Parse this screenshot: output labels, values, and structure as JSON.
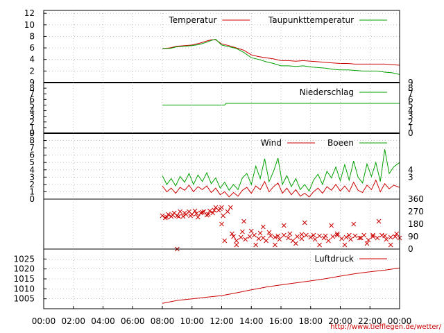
{
  "credit": "http://www.tiefflegen.de/wetter/",
  "colors": {
    "red": "#cc0000",
    "green": "#00a000",
    "grid": "#999999",
    "frame": "#000000"
  },
  "x_axis": {
    "ticks": [
      "00:00",
      "02:00",
      "04:00",
      "06:00",
      "08:00",
      "10:00",
      "12:00",
      "14:00",
      "16:00",
      "18:00",
      "20:00",
      "22:00",
      "00:00"
    ]
  },
  "chart_data": [
    {
      "type": "line",
      "panel": "temperature",
      "legend_placement": "top-right",
      "grid": true,
      "ylim": [
        0,
        12.5
      ],
      "y_ticks": [
        "12",
        "10",
        "8",
        "6",
        "4",
        "2"
      ],
      "x_unit": "hours",
      "series": [
        {
          "name": "Temperatur",
          "color": "red",
          "x": [
            8.0,
            8.5,
            9.0,
            9.5,
            10.0,
            10.5,
            11.0,
            11.3,
            11.6,
            12.0,
            12.5,
            13.0,
            13.5,
            14.0,
            14.5,
            15.0,
            15.5,
            16.0,
            16.5,
            17.0,
            17.5,
            18.0,
            18.5,
            19.0,
            19.5,
            20.0,
            20.5,
            21.0,
            21.5,
            22.0,
            22.5,
            23.0,
            23.5,
            24.0
          ],
          "values": [
            5.9,
            6.0,
            6.3,
            6.4,
            6.5,
            6.8,
            7.2,
            7.4,
            7.4,
            6.7,
            6.4,
            6.0,
            5.6,
            4.8,
            4.5,
            4.3,
            4.1,
            3.8,
            3.8,
            3.7,
            3.8,
            3.7,
            3.6,
            3.5,
            3.4,
            3.3,
            3.3,
            3.2,
            3.2,
            3.2,
            3.2,
            3.2,
            3.1,
            3.0
          ]
        },
        {
          "name": "Taupunkttemperatur",
          "color": "green",
          "x": [
            8.0,
            8.5,
            9.0,
            9.5,
            10.0,
            10.5,
            11.0,
            11.3,
            11.6,
            12.0,
            12.5,
            13.0,
            13.5,
            14.0,
            14.5,
            15.0,
            15.5,
            16.0,
            16.5,
            17.0,
            17.5,
            18.0,
            18.5,
            19.0,
            19.5,
            20.0,
            20.5,
            21.0,
            21.5,
            22.0,
            22.5,
            23.0,
            23.5,
            24.0
          ],
          "values": [
            5.9,
            5.9,
            6.2,
            6.3,
            6.4,
            6.6,
            7.0,
            7.3,
            7.5,
            6.5,
            6.2,
            5.9,
            5.2,
            4.3,
            4.0,
            3.6,
            3.3,
            2.9,
            2.9,
            2.8,
            2.9,
            2.7,
            2.6,
            2.5,
            2.3,
            2.2,
            2.2,
            2.1,
            2.0,
            2.0,
            2.0,
            1.8,
            1.7,
            1.4
          ]
        }
      ]
    },
    {
      "type": "line",
      "panel": "precipitation",
      "legend_placement": "top-right",
      "ylim": [
        0,
        9
      ],
      "y_ticks": [
        "9",
        "8",
        "7",
        "6",
        "5",
        "4",
        "3",
        "2",
        "1",
        "0"
      ],
      "series": [
        {
          "name": "Niederschlag",
          "color": "green",
          "x": [
            8.0,
            12.2,
            12.3,
            24.0
          ],
          "values": [
            5.0,
            5.0,
            5.3,
            5.3
          ]
        }
      ]
    },
    {
      "type": "line",
      "panel": "wind",
      "legend_placement": "top-right",
      "grid": true,
      "ylim": [
        0,
        9
      ],
      "y_ticks": [
        "9",
        "8",
        "7",
        "6",
        "5",
        "4",
        "3",
        "2",
        "1",
        "0"
      ],
      "right_ticks": [
        "4",
        "3"
      ],
      "series": [
        {
          "name": "Wind",
          "color": "red",
          "x": [
            8.0,
            8.3,
            8.6,
            8.9,
            9.2,
            9.5,
            9.8,
            10.1,
            10.4,
            10.7,
            11.0,
            11.3,
            11.6,
            11.9,
            12.2,
            12.5,
            12.8,
            13.1,
            13.4,
            13.7,
            14.0,
            14.3,
            14.6,
            14.9,
            15.2,
            15.5,
            15.8,
            16.1,
            16.4,
            16.7,
            17.0,
            17.3,
            17.6,
            17.9,
            18.2,
            18.5,
            18.8,
            19.1,
            19.4,
            19.7,
            20.0,
            20.3,
            20.6,
            20.9,
            21.2,
            21.5,
            21.8,
            22.1,
            22.4,
            22.7,
            23.0,
            23.3,
            23.6,
            24.0
          ],
          "values": [
            1.8,
            1.0,
            1.5,
            0.8,
            1.6,
            1.2,
            1.9,
            1.0,
            1.7,
            1.3,
            1.8,
            0.9,
            1.5,
            0.6,
            1.0,
            0.3,
            0.9,
            0.4,
            1.2,
            1.6,
            0.8,
            1.8,
            1.3,
            2.4,
            1.0,
            1.7,
            2.2,
            0.8,
            1.5,
            0.6,
            1.3,
            0.4,
            0.8,
            0.3,
            1.0,
            1.5,
            0.8,
            1.7,
            1.2,
            2.0,
            1.1,
            1.8,
            1.0,
            2.3,
            1.2,
            0.9,
            1.9,
            1.3,
            2.6,
            1.0,
            2.1,
            1.4,
            1.9,
            1.6
          ]
        },
        {
          "name": "Boeen",
          "color": "green",
          "x": [
            8.0,
            8.3,
            8.6,
            8.9,
            9.2,
            9.5,
            9.8,
            10.1,
            10.4,
            10.7,
            11.0,
            11.3,
            11.6,
            11.9,
            12.2,
            12.5,
            12.8,
            13.1,
            13.4,
            13.7,
            14.0,
            14.3,
            14.6,
            14.9,
            15.2,
            15.5,
            15.8,
            16.1,
            16.4,
            16.7,
            17.0,
            17.3,
            17.6,
            17.9,
            18.2,
            18.5,
            18.8,
            19.1,
            19.4,
            19.7,
            20.0,
            20.3,
            20.6,
            20.9,
            21.2,
            21.5,
            21.8,
            22.1,
            22.4,
            22.7,
            23.0,
            23.3,
            23.6,
            24.0
          ],
          "values": [
            3.2,
            2.0,
            2.8,
            1.8,
            3.1,
            2.3,
            3.5,
            2.0,
            3.3,
            2.4,
            3.6,
            2.1,
            2.9,
            1.5,
            2.3,
            1.2,
            2.0,
            1.3,
            2.9,
            3.5,
            2.0,
            4.5,
            2.8,
            5.5,
            2.4,
            3.8,
            5.6,
            2.0,
            3.2,
            1.7,
            2.8,
            1.3,
            2.0,
            1.1,
            2.6,
            3.4,
            2.0,
            3.8,
            2.9,
            4.4,
            2.5,
            4.7,
            2.6,
            5.2,
            3.0,
            2.2,
            4.8,
            3.1,
            5.0,
            2.4,
            6.8,
            3.5,
            4.4,
            5.0
          ]
        }
      ]
    },
    {
      "type": "scatter",
      "panel": "wind-direction",
      "ylim": [
        0,
        360
      ],
      "right_ticks": [
        "360",
        "270",
        "180",
        "90",
        "0"
      ],
      "series": [
        {
          "name": "",
          "color": "red",
          "x": [
            8.0,
            8.2,
            8.4,
            8.6,
            8.8,
            9.0,
            9.2,
            9.4,
            9.6,
            9.8,
            10.0,
            10.2,
            10.4,
            10.6,
            10.8,
            11.0,
            11.2,
            11.4,
            11.6,
            11.8,
            12.0,
            8.3,
            8.7,
            9.1,
            9.5,
            9.9,
            10.3,
            10.7,
            11.1,
            11.5,
            11.9,
            12.1,
            12.4,
            12.6,
            12.8,
            13.0,
            13.3,
            13.6,
            13.9,
            14.2,
            14.5,
            14.8,
            15.0,
            15.3,
            15.6,
            15.9,
            16.2,
            16.5,
            16.8,
            17.1,
            17.4,
            17.7,
            18.0,
            18.3,
            18.6,
            18.9,
            19.2,
            19.5,
            19.8,
            20.1,
            20.4,
            20.7,
            21.0,
            21.3,
            21.6,
            21.9,
            22.2,
            22.5,
            22.8,
            23.1,
            23.4,
            23.7,
            24.0,
            12.7,
            13.4,
            14.0,
            14.6,
            15.2,
            15.8,
            16.6,
            17.4,
            18.2,
            19.0,
            19.8,
            20.6,
            21.4,
            22.2,
            23.0,
            23.8,
            12.2,
            13.0,
            14.3,
            15.6,
            17.0,
            18.6,
            20.3,
            21.8,
            23.4,
            9.0,
            12.0,
            13.5,
            14.8,
            16.2,
            17.6,
            19.4,
            20.9,
            22.6
          ],
          "values": [
            240,
            225,
            250,
            235,
            260,
            240,
            270,
            235,
            250,
            270,
            250,
            275,
            230,
            260,
            270,
            245,
            275,
            260,
            300,
            280,
            300,
            230,
            245,
            235,
            260,
            240,
            255,
            265,
            250,
            280,
            290,
            240,
            270,
            300,
            90,
            60,
            85,
            70,
            90,
            100,
            75,
            80,
            60,
            95,
            85,
            70,
            100,
            80,
            60,
            90,
            75,
            100,
            85,
            70,
            95,
            80,
            60,
            90,
            100,
            75,
            85,
            70,
            95,
            80,
            100,
            65,
            90,
            80,
            100,
            70,
            85,
            90,
            80,
            110,
            125,
            130,
            115,
            120,
            95,
            110,
            105,
            100,
            95,
            110,
            100,
            80,
            100,
            95,
            110,
            60,
            30,
            30,
            30,
            40,
            30,
            30,
            40,
            30,
            0,
            180,
            200,
            160,
            170,
            190,
            170,
            180,
            200
          ],
          "series_extra": ""
        }
      ]
    },
    {
      "type": "line",
      "panel": "pressure",
      "legend_placement": "top-right",
      "grid": true,
      "ylim": [
        1000,
        1030
      ],
      "y_ticks": [
        "1025",
        "1020",
        "1015",
        "1010",
        "1005"
      ],
      "series": [
        {
          "name": "Luftdruck",
          "color": "red",
          "x": [
            8.0,
            9.0,
            10.0,
            11.0,
            12.0,
            13.0,
            14.0,
            15.0,
            16.0,
            17.0,
            18.0,
            19.0,
            20.0,
            21.0,
            22.0,
            23.0,
            24.0
          ],
          "values": [
            1002.7,
            1004.2,
            1005.0,
            1005.8,
            1006.6,
            1008.0,
            1009.5,
            1010.9,
            1012.0,
            1013.0,
            1014.0,
            1015.1,
            1016.4,
            1017.6,
            1018.6,
            1019.4,
            1020.5
          ]
        }
      ]
    }
  ]
}
